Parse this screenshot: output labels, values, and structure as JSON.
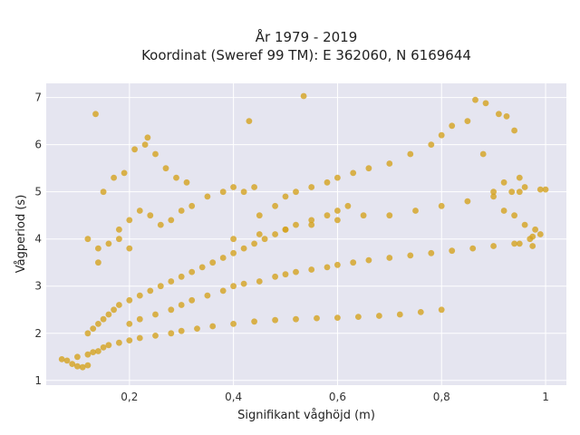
{
  "chart_data": {
    "type": "scatter",
    "title_line1": "År 1979 - 2019",
    "title_line2": "Koordinat (Sweref 99 TM): E 362060, N 6169644",
    "xlabel": "Signifikant våghöjd (m)",
    "ylabel": "Vågperiod (s)",
    "xlim": [
      0.04,
      1.04
    ],
    "ylim": [
      0.9,
      7.3
    ],
    "x_ticks": [
      0.2,
      0.4,
      0.6,
      0.8,
      1.0
    ],
    "x_tick_labels": [
      "0,2",
      "0,4",
      "0,6",
      "0,8",
      "1"
    ],
    "y_ticks": [
      1,
      2,
      3,
      4,
      5,
      6,
      7
    ],
    "y_tick_labels": [
      "1",
      "2",
      "3",
      "4",
      "5",
      "6",
      "7"
    ],
    "grid": true,
    "point_color": "#d4a31f",
    "background_color": "#e5e5f0",
    "points": [
      [
        0.07,
        1.45
      ],
      [
        0.08,
        1.42
      ],
      [
        0.09,
        1.35
      ],
      [
        0.1,
        1.3
      ],
      [
        0.11,
        1.28
      ],
      [
        0.12,
        1.32
      ],
      [
        0.1,
        1.5
      ],
      [
        0.12,
        1.55
      ],
      [
        0.13,
        1.6
      ],
      [
        0.14,
        1.62
      ],
      [
        0.15,
        1.7
      ],
      [
        0.16,
        1.75
      ],
      [
        0.18,
        1.8
      ],
      [
        0.2,
        1.85
      ],
      [
        0.22,
        1.9
      ],
      [
        0.25,
        1.95
      ],
      [
        0.28,
        2.0
      ],
      [
        0.3,
        2.05
      ],
      [
        0.33,
        2.1
      ],
      [
        0.36,
        2.15
      ],
      [
        0.4,
        2.2
      ],
      [
        0.44,
        2.25
      ],
      [
        0.48,
        2.28
      ],
      [
        0.52,
        2.3
      ],
      [
        0.56,
        2.32
      ],
      [
        0.6,
        2.33
      ],
      [
        0.64,
        2.35
      ],
      [
        0.68,
        2.37
      ],
      [
        0.72,
        2.4
      ],
      [
        0.76,
        2.45
      ],
      [
        0.8,
        2.5
      ],
      [
        0.12,
        2.0
      ],
      [
        0.13,
        2.1
      ],
      [
        0.14,
        2.2
      ],
      [
        0.15,
        2.3
      ],
      [
        0.16,
        2.4
      ],
      [
        0.17,
        2.5
      ],
      [
        0.18,
        2.6
      ],
      [
        0.2,
        2.7
      ],
      [
        0.22,
        2.8
      ],
      [
        0.24,
        2.9
      ],
      [
        0.26,
        3.0
      ],
      [
        0.28,
        3.1
      ],
      [
        0.3,
        3.2
      ],
      [
        0.32,
        3.3
      ],
      [
        0.34,
        3.4
      ],
      [
        0.36,
        3.5
      ],
      [
        0.38,
        3.6
      ],
      [
        0.4,
        3.7
      ],
      [
        0.42,
        3.8
      ],
      [
        0.44,
        3.9
      ],
      [
        0.46,
        4.0
      ],
      [
        0.48,
        4.1
      ],
      [
        0.5,
        4.2
      ],
      [
        0.52,
        4.3
      ],
      [
        0.55,
        4.4
      ],
      [
        0.58,
        4.5
      ],
      [
        0.6,
        4.6
      ],
      [
        0.62,
        4.7
      ],
      [
        0.2,
        2.2
      ],
      [
        0.22,
        2.3
      ],
      [
        0.25,
        2.4
      ],
      [
        0.28,
        2.5
      ],
      [
        0.3,
        2.6
      ],
      [
        0.32,
        2.7
      ],
      [
        0.35,
        2.8
      ],
      [
        0.38,
        2.9
      ],
      [
        0.4,
        3.0
      ],
      [
        0.42,
        3.05
      ],
      [
        0.45,
        3.1
      ],
      [
        0.48,
        3.2
      ],
      [
        0.5,
        3.25
      ],
      [
        0.52,
        3.3
      ],
      [
        0.55,
        3.35
      ],
      [
        0.58,
        3.4
      ],
      [
        0.6,
        3.45
      ],
      [
        0.63,
        3.5
      ],
      [
        0.66,
        3.55
      ],
      [
        0.7,
        3.6
      ],
      [
        0.74,
        3.65
      ],
      [
        0.78,
        3.7
      ],
      [
        0.82,
        3.75
      ],
      [
        0.86,
        3.8
      ],
      [
        0.9,
        3.85
      ],
      [
        0.94,
        3.9
      ],
      [
        0.97,
        4.0
      ],
      [
        0.99,
        4.1
      ],
      [
        0.4,
        4.0
      ],
      [
        0.45,
        4.1
      ],
      [
        0.5,
        4.2
      ],
      [
        0.55,
        4.3
      ],
      [
        0.6,
        4.4
      ],
      [
        0.65,
        4.5
      ],
      [
        0.7,
        4.5
      ],
      [
        0.75,
        4.6
      ],
      [
        0.8,
        4.7
      ],
      [
        0.85,
        4.8
      ],
      [
        0.9,
        4.9
      ],
      [
        0.95,
        5.0
      ],
      [
        1.0,
        5.05
      ],
      [
        0.45,
        4.5
      ],
      [
        0.48,
        4.7
      ],
      [
        0.5,
        4.9
      ],
      [
        0.52,
        5.0
      ],
      [
        0.55,
        5.1
      ],
      [
        0.58,
        5.2
      ],
      [
        0.6,
        5.3
      ],
      [
        0.63,
        5.4
      ],
      [
        0.66,
        5.5
      ],
      [
        0.7,
        5.6
      ],
      [
        0.74,
        5.8
      ],
      [
        0.78,
        6.0
      ],
      [
        0.8,
        6.2
      ],
      [
        0.82,
        6.4
      ],
      [
        0.85,
        6.5
      ],
      [
        0.18,
        4.2
      ],
      [
        0.2,
        4.4
      ],
      [
        0.22,
        4.6
      ],
      [
        0.24,
        4.5
      ],
      [
        0.26,
        4.3
      ],
      [
        0.28,
        4.4
      ],
      [
        0.3,
        4.6
      ],
      [
        0.32,
        4.7
      ],
      [
        0.35,
        4.9
      ],
      [
        0.38,
        5.0
      ],
      [
        0.4,
        5.1
      ],
      [
        0.42,
        5.0
      ],
      [
        0.44,
        5.1
      ],
      [
        0.15,
        5.0
      ],
      [
        0.17,
        5.3
      ],
      [
        0.19,
        5.4
      ],
      [
        0.21,
        5.9
      ],
      [
        0.23,
        6.0
      ],
      [
        0.25,
        5.8
      ],
      [
        0.27,
        5.5
      ],
      [
        0.29,
        5.3
      ],
      [
        0.31,
        5.2
      ],
      [
        0.14,
        3.8
      ],
      [
        0.16,
        3.9
      ],
      [
        0.18,
        4.0
      ],
      [
        0.2,
        3.8
      ],
      [
        0.12,
        4.0
      ],
      [
        0.14,
        3.5
      ],
      [
        0.135,
        6.65
      ],
      [
        0.235,
        6.15
      ],
      [
        0.43,
        6.5
      ],
      [
        0.535,
        7.03
      ],
      [
        0.865,
        6.95
      ],
      [
        0.885,
        6.88
      ],
      [
        0.91,
        6.65
      ],
      [
        0.925,
        6.6
      ],
      [
        0.94,
        6.3
      ],
      [
        0.95,
        5.3
      ],
      [
        0.88,
        5.8
      ],
      [
        0.9,
        5.0
      ],
      [
        0.92,
        5.2
      ],
      [
        0.935,
        5.0
      ],
      [
        0.96,
        5.1
      ],
      [
        0.975,
        4.05
      ],
      [
        0.99,
        5.05
      ],
      [
        0.92,
        4.6
      ],
      [
        0.94,
        4.5
      ],
      [
        0.96,
        4.3
      ],
      [
        0.98,
        4.2
      ],
      [
        0.95,
        3.9
      ],
      [
        0.975,
        3.85
      ]
    ]
  }
}
